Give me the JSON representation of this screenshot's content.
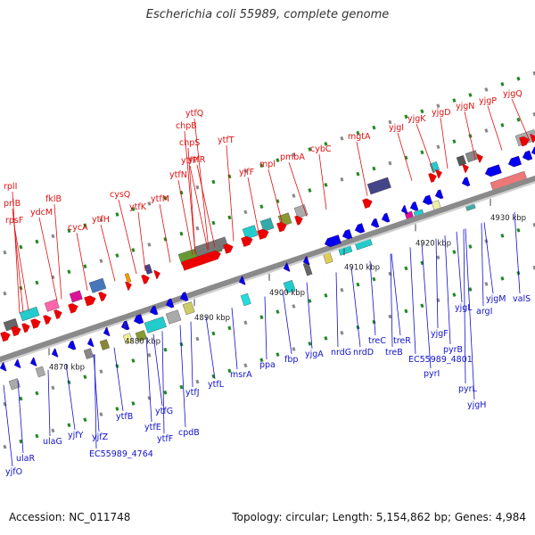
{
  "title": "Escherichia coli 55989, complete genome",
  "footer": {
    "accession": "Accession: NC_011748",
    "summary": "Topology: circular; Length: 5,154,862 bp; Genes: 4,984"
  },
  "colors": {
    "upper_label": "#dd1111",
    "lower_label": "#1111cc",
    "forward_arrow": "#ee0000",
    "reverse_arrow": "#0000ee",
    "backbone": "#8a8a8a",
    "dots": "#228822"
  },
  "ticks": [
    {
      "label": "4870 kbp"
    },
    {
      "label": "4880 kbp"
    },
    {
      "label": "4890 kbp"
    },
    {
      "label": "4900 kbp"
    },
    {
      "label": "4910 kbp"
    },
    {
      "label": "4920 kbp"
    },
    {
      "label": "4930 kbp"
    }
  ],
  "upper_genes": [
    {
      "name": "rplI"
    },
    {
      "name": "priB"
    },
    {
      "name": "rpsF"
    },
    {
      "name": "ydcM"
    },
    {
      "name": "fklB"
    },
    {
      "name": "cycA"
    },
    {
      "name": "ytfH"
    },
    {
      "name": "cysQ"
    },
    {
      "name": "ytfK"
    },
    {
      "name": "ytfM"
    },
    {
      "name": "ytfN"
    },
    {
      "name": "ytfP"
    },
    {
      "name": "chpS"
    },
    {
      "name": "chpB"
    },
    {
      "name": "ytfQ"
    },
    {
      "name": "ytfR"
    },
    {
      "name": "ytfT"
    },
    {
      "name": "yjfF"
    },
    {
      "name": "mpl"
    },
    {
      "name": "pmbA"
    },
    {
      "name": "cybC"
    },
    {
      "name": "mgtA"
    },
    {
      "name": "yjgI"
    },
    {
      "name": "yjgK"
    },
    {
      "name": "yjgD"
    },
    {
      "name": "yjgN"
    },
    {
      "name": "yjgP"
    },
    {
      "name": "yjgQ"
    }
  ],
  "lower_genes": [
    {
      "name": "yjfO"
    },
    {
      "name": "ulaR"
    },
    {
      "name": "ulaG"
    },
    {
      "name": "yjfY"
    },
    {
      "name": "yjfZ"
    },
    {
      "name": "EC55989_4764"
    },
    {
      "name": "ytfB"
    },
    {
      "name": "ytfE"
    },
    {
      "name": "ytfF"
    },
    {
      "name": "ytfG"
    },
    {
      "name": "cpdB"
    },
    {
      "name": "ytfJ"
    },
    {
      "name": "ytfL"
    },
    {
      "name": "msrA"
    },
    {
      "name": "ppa"
    },
    {
      "name": "fbp"
    },
    {
      "name": "yjgA"
    },
    {
      "name": "nrdG"
    },
    {
      "name": "nrdD"
    },
    {
      "name": "treC"
    },
    {
      "name": "treB"
    },
    {
      "name": "treR"
    },
    {
      "name": "EC55989_4801"
    },
    {
      "name": "yjgF"
    },
    {
      "name": "pyrI"
    },
    {
      "name": "pyrB"
    },
    {
      "name": "pyrL"
    },
    {
      "name": "yjgH"
    },
    {
      "name": "yjgL"
    },
    {
      "name": "argI"
    },
    {
      "name": "yjgM"
    },
    {
      "name": "valS"
    }
  ]
}
